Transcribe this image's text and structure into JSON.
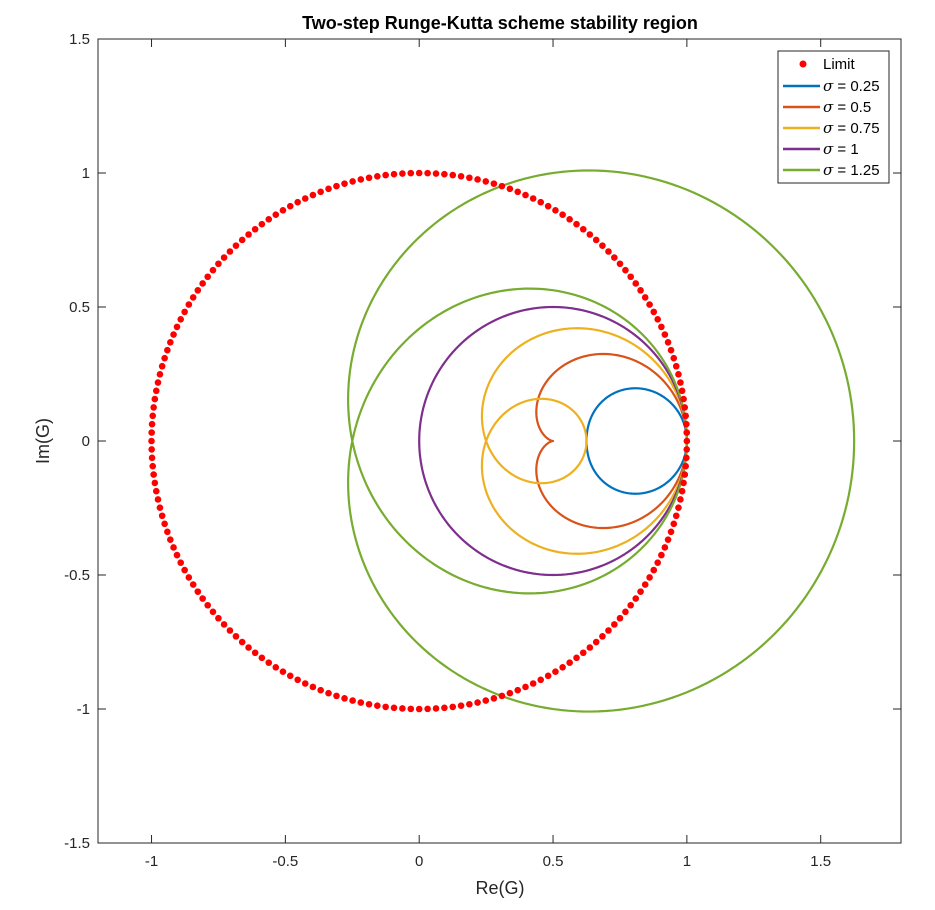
{
  "chart_data": {
    "type": "line",
    "title": "Two-step Runge-Kutta scheme stability region",
    "xlabel": "Re(G)",
    "ylabel": "Im(G)",
    "xlim": [
      -1.2,
      1.8
    ],
    "ylim": [
      -1.5,
      1.5
    ],
    "xticks": [
      -1,
      -0.5,
      0,
      0.5,
      1,
      1.5
    ],
    "xtick_labels": [
      "-1",
      "-0.5",
      "0",
      "0.5",
      "1",
      "1.5"
    ],
    "yticks": [
      -1.5,
      -1,
      -0.5,
      0,
      0.5,
      1,
      1.5
    ],
    "ytick_labels": [
      "-1.5",
      "-1",
      "-0.5",
      "0",
      "0.5",
      "1",
      "1.5"
    ],
    "grid": false,
    "legend_position": "top-right",
    "limit": {
      "name": "Limit",
      "marker": "dot",
      "color": "#FF0000",
      "shape": "unit circle |G| = 1",
      "center": [
        0,
        0
      ],
      "radius": 1,
      "n_points": 200
    },
    "series": [
      {
        "name": "σ = 0.25",
        "legend_symbol": "σ",
        "legend_text": " = 0.25",
        "sigma": 0.25,
        "color": "#0072BD",
        "re_range": [
          0.614,
          1.0
        ],
        "im_range": [
          -0.198,
          0.198
        ]
      },
      {
        "name": "σ = 0.5",
        "legend_symbol": "σ",
        "legend_text": " = 0.5",
        "sigma": 0.5,
        "color": "#D95319",
        "re_range": [
          0.438,
          1.0
        ],
        "im_range": [
          -0.325,
          0.325
        ]
      },
      {
        "name": "σ = 0.75",
        "legend_symbol": "σ",
        "legend_text": " = 0.75",
        "sigma": 0.75,
        "color": "#EDB120",
        "re_range": [
          0.246,
          1.0
        ],
        "im_range": [
          -0.42,
          0.42
        ]
      },
      {
        "name": "σ = 1",
        "legend_symbol": "σ",
        "legend_text": " = 1",
        "sigma": 1,
        "color": "#7E2F8E",
        "re_range": [
          0.0,
          1.0
        ],
        "im_range": [
          -0.5,
          0.5
        ]
      },
      {
        "name": "σ = 1.25",
        "legend_symbol": "σ",
        "legend_text": " = 1.25",
        "sigma": 1.25,
        "color": "#77AC30",
        "re_range": [
          -0.26,
          1.62
        ],
        "im_range": [
          -1.01,
          1.01
        ]
      }
    ]
  }
}
